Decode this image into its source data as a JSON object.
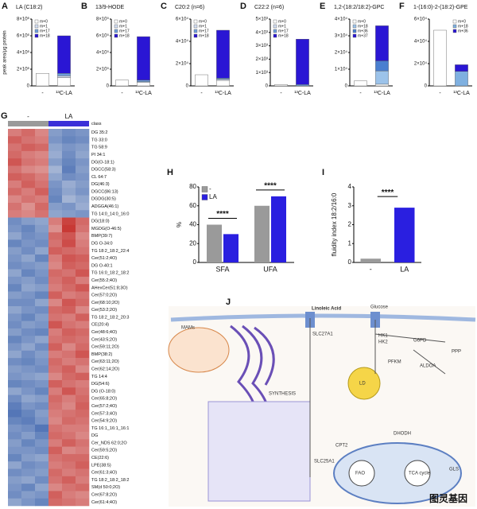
{
  "chart_data": [
    {
      "type": "bar",
      "panel_label": "A",
      "title": "LA (C18:2)",
      "ylabel": "peak area/μg protein",
      "stacked": true,
      "legend": "upper left",
      "categories": [
        "-",
        "¹³C-LA"
      ],
      "ylim": [
        0,
        8000000
      ],
      "yticks": [
        0,
        {
          "value": 2000000,
          "label": "2×10⁶"
        },
        {
          "value": 4000000,
          "label": "4×10⁶"
        },
        {
          "value": 6000000,
          "label": "6×10⁶"
        },
        {
          "value": 8000000,
          "label": "8×10⁶"
        }
      ],
      "series": [
        {
          "name": "m+0",
          "color": "#ffffff",
          "values": [
            1500000,
            1000000
          ]
        },
        {
          "name": "m+1",
          "color": "#d3def2",
          "values": [
            0,
            200000
          ]
        },
        {
          "name": "m+17",
          "color": "#6f9fdc",
          "values": [
            0,
            300000
          ]
        },
        {
          "name": "m+18",
          "color": "#2a16d4",
          "values": [
            0,
            4500000
          ]
        }
      ]
    },
    {
      "type": "bar",
      "panel_label": "B",
      "title": "13/9-HODE",
      "stacked": true,
      "legend": "upper left",
      "categories": [
        "-",
        "¹³C-LA"
      ],
      "ylim": [
        0,
        800000
      ],
      "yticks": [
        0,
        {
          "value": 200000,
          "label": "2×10⁵"
        },
        {
          "value": 400000,
          "label": "4×10⁵"
        },
        {
          "value": 600000,
          "label": "6×10⁵"
        },
        {
          "value": 800000,
          "label": "8×10⁵"
        }
      ],
      "series": [
        {
          "name": "m+0",
          "color": "#ffffff",
          "values": [
            70000,
            40000
          ]
        },
        {
          "name": "m+1",
          "color": "#d3def2",
          "values": [
            0,
            10000
          ]
        },
        {
          "name": "m+17",
          "color": "#6f9fdc",
          "values": [
            0,
            20000
          ]
        },
        {
          "name": "m+18",
          "color": "#2a16d4",
          "values": [
            0,
            520000
          ]
        }
      ]
    },
    {
      "type": "bar",
      "panel_label": "C",
      "title": "C20:2 (n=6)",
      "stacked": true,
      "legend": "upper left",
      "categories": [
        "-",
        "¹³C-LA"
      ],
      "ylim": [
        0,
        60000
      ],
      "yticks": [
        0,
        {
          "value": 20000,
          "label": "2×10⁴"
        },
        {
          "value": 40000,
          "label": "4×10⁴"
        },
        {
          "value": 60000,
          "label": "6×10⁴"
        }
      ],
      "series": [
        {
          "name": "m+0",
          "color": "#ffffff",
          "values": [
            10000,
            5000
          ]
        },
        {
          "name": "m+1",
          "color": "#d3def2",
          "values": [
            0,
            1000
          ]
        },
        {
          "name": "m+17",
          "color": "#6f9fdc",
          "values": [
            0,
            1000
          ]
        },
        {
          "name": "m+18",
          "color": "#2a16d4",
          "values": [
            0,
            43000
          ]
        }
      ]
    },
    {
      "type": "bar",
      "panel_label": "D",
      "title": "C22:2 (n=6)",
      "stacked": true,
      "legend": "upper left",
      "categories": [
        "-",
        "¹³C-LA"
      ],
      "ylim": [
        0,
        5000
      ],
      "yticks": [
        0,
        {
          "value": 1000,
          "label": "1×10³"
        },
        {
          "value": 2000,
          "label": "2×10³"
        },
        {
          "value": 3000,
          "label": "3×10³"
        },
        {
          "value": 4000,
          "label": "4×10³"
        },
        {
          "value": 5000,
          "label": "5×10³"
        }
      ],
      "series": [
        {
          "name": "m+0",
          "color": "#ffffff",
          "values": [
            100,
            0
          ]
        },
        {
          "name": "m+1",
          "color": "#d3def2",
          "values": [
            0,
            0
          ]
        },
        {
          "name": "m+17",
          "color": "#6f9fdc",
          "values": [
            0,
            100
          ]
        },
        {
          "name": "m+18",
          "color": "#2a16d4",
          "values": [
            0,
            3400
          ]
        }
      ]
    },
    {
      "type": "bar",
      "panel_label": "E",
      "title": "1,2-(18:2/18:2)-GPC",
      "stacked": true,
      "legend": "upper left",
      "categories": [
        "-",
        "¹³C-LA"
      ],
      "ylim": [
        0,
        40000
      ],
      "yticks": [
        0,
        {
          "value": 10000,
          "label": "1×10⁴"
        },
        {
          "value": 20000,
          "label": "2×10⁴"
        },
        {
          "value": 30000,
          "label": "3×10⁴"
        },
        {
          "value": 40000,
          "label": "4×10⁴"
        }
      ],
      "series": [
        {
          "name": "m+0",
          "color": "#ffffff",
          "values": [
            3000,
            1000
          ]
        },
        {
          "name": "m+18",
          "color": "#9cc3ea",
          "values": [
            0,
            8000
          ]
        },
        {
          "name": "m+36",
          "color": "#4a7fd0",
          "values": [
            0,
            6000
          ]
        },
        {
          "name": "m+37",
          "color": "#2a16d4",
          "values": [
            0,
            21000
          ]
        }
      ]
    },
    {
      "type": "bar",
      "panel_label": "F",
      "title": "1-(16:0)-2-(18:2)-GPE",
      "stacked": true,
      "legend": "upper right",
      "categories": [
        "-",
        "¹³C-LA"
      ],
      "ylim": [
        0,
        60000
      ],
      "yticks": [
        0,
        {
          "value": 20000,
          "label": "2×10⁴"
        },
        {
          "value": 40000,
          "label": "4×10⁴"
        },
        {
          "value": 60000,
          "label": "6×10⁴"
        }
      ],
      "series": [
        {
          "name": "m+0",
          "color": "#ffffff",
          "values": [
            50000,
            0
          ]
        },
        {
          "name": "m+18",
          "color": "#7fb0e0",
          "values": [
            0,
            13000
          ]
        },
        {
          "name": "m+36",
          "color": "#2a16d4",
          "values": [
            0,
            6000
          ]
        }
      ]
    },
    {
      "type": "heatmap",
      "panel_label": "G",
      "column_groups": [
        "-",
        "LA"
      ],
      "group_colors": [
        "#9a9a9a",
        "#3a2fd8"
      ],
      "class_label": "class",
      "colors": [
        "#2c57a8",
        "#f2f2f2",
        "#c62f2b"
      ],
      "zlim": [
        -2,
        2
      ],
      "rows": [
        "DG 35:2",
        "TG 33:0",
        "TG 58:9",
        "PI 34:1",
        "DG(O-18:1)",
        "DGCC(58:3)",
        "CL 64:7",
        "DG(46:3)",
        "DGCC(86:13)",
        "DGDG(30:5)",
        "ADGGA(46:1)",
        "TG 14:0_14:0_16:0",
        "DG(18:0)",
        "MGDG(O-46:5)",
        "BMP(39:7)",
        "DG O-34:0",
        "TG 18:2_18:2_22:4",
        "Cer(51:2;4O)",
        "DG O-40:1",
        "TG 16:0_18:2_18:2",
        "Cer(55:2;4O)",
        "AHexCer(51:8;3O)",
        "Cer(57:0;2O)",
        "Cer(68:10;2O)",
        "Cer(53:2;2O)",
        "TG 18:2_18:2_20:3",
        "CE(20:4)",
        "Cer(48:6;4O)",
        "Cer(43:5;2O)",
        "Cer(59:11;2O)",
        "BMP(38:2)",
        "Cer(63:11;2O)",
        "Cer(62:14;2O)",
        "TG 14:4",
        "DG(54:6)",
        "DG (O-18:0)",
        "Cer(65:8;2O)",
        "Cer(57:2;4O)",
        "Cer(57:3;4O)",
        "Cer(54:9;2O)",
        "TG 16:1_16:1_16:1",
        "DG",
        "Cer_NDS 62:0;2O",
        "Cer(59:5;2O)",
        "CE(22:6)",
        "LPE(38:5)",
        "Cer(61:3;4O)",
        "TG 18:2_18:2_18:2",
        "SM(d 50:0;2O)",
        "Cer(67:8;2O)",
        "Cer(61:4;4O)"
      ],
      "values": [
        [
          1.2,
          1.4,
          1.1,
          -1.1,
          -1.3,
          -1.2
        ],
        [
          1.5,
          1.3,
          1.2,
          -1.2,
          -1.4,
          -1.3
        ],
        [
          1.3,
          1.5,
          1.4,
          -1.0,
          -1.2,
          -1.1
        ],
        [
          1.4,
          1.2,
          1.1,
          -0.9,
          -1.3,
          -1.0
        ],
        [
          1.6,
          1.3,
          1.2,
          -1.1,
          -1.4,
          -1.2
        ],
        [
          1.3,
          1.1,
          1.0,
          -0.8,
          -1.5,
          -1.1
        ],
        [
          1.5,
          1.4,
          1.2,
          -1.0,
          -1.3,
          -1.2
        ],
        [
          1.2,
          1.5,
          1.3,
          -1.2,
          -0.9,
          -1.1
        ],
        [
          1.4,
          1.2,
          1.5,
          -1.3,
          -1.0,
          -1.2
        ],
        [
          1.1,
          1.3,
          1.2,
          -1.4,
          -0.8,
          -1.0
        ],
        [
          1.3,
          1.0,
          1.4,
          -1.1,
          -1.2,
          -0.9
        ],
        [
          1.2,
          1.1,
          1.3,
          -1.0,
          -1.1,
          -1.2
        ],
        [
          -1.3,
          -1.1,
          -1.0,
          1.2,
          1.8,
          1.4
        ],
        [
          -1.2,
          -1.4,
          -1.1,
          1.0,
          1.9,
          1.3
        ],
        [
          -1.0,
          -1.3,
          -1.2,
          1.4,
          1.6,
          1.1
        ],
        [
          -1.4,
          -1.2,
          -1.3,
          1.3,
          1.7,
          1.2
        ],
        [
          -1.1,
          -1.3,
          -1.0,
          1.5,
          1.4,
          1.3
        ],
        [
          -1.2,
          -1.0,
          -1.4,
          1.2,
          1.6,
          1.5
        ],
        [
          -1.3,
          -1.2,
          -1.1,
          1.1,
          1.5,
          1.4
        ],
        [
          -1.0,
          -1.4,
          -1.2,
          1.4,
          1.3,
          1.6
        ],
        [
          -1.2,
          -1.1,
          -1.3,
          1.3,
          1.5,
          1.2
        ],
        [
          -1.4,
          -1.0,
          -1.1,
          1.2,
          1.4,
          1.6
        ],
        [
          -1.1,
          -1.2,
          -1.4,
          1.5,
          1.2,
          1.3
        ],
        [
          -1.3,
          -1.3,
          -1.0,
          1.1,
          1.6,
          1.4
        ],
        [
          -1.0,
          -1.2,
          -1.3,
          1.4,
          1.5,
          1.1
        ],
        [
          -1.2,
          -1.4,
          -1.1,
          1.3,
          1.2,
          1.5
        ],
        [
          -1.3,
          -1.1,
          -1.2,
          1.6,
          1.3,
          1.2
        ],
        [
          -1.1,
          -1.3,
          -1.4,
          1.2,
          1.5,
          1.4
        ],
        [
          -1.4,
          -1.2,
          -1.0,
          1.3,
          1.4,
          1.3
        ],
        [
          -1.2,
          -1.0,
          -1.3,
          1.5,
          1.1,
          1.4
        ],
        [
          -1.0,
          -1.3,
          -1.1,
          1.2,
          1.3,
          1.6
        ],
        [
          -1.3,
          -1.4,
          -1.2,
          1.4,
          1.2,
          1.3
        ],
        [
          -1.1,
          -1.2,
          -1.3,
          1.3,
          1.5,
          1.1
        ],
        [
          -1.2,
          -1.1,
          -1.0,
          1.1,
          1.4,
          1.5
        ],
        [
          -1.4,
          -1.3,
          -1.2,
          1.5,
          1.3,
          1.2
        ],
        [
          -1.0,
          -1.2,
          -1.4,
          1.2,
          1.6,
          1.3
        ],
        [
          -1.3,
          -1.0,
          -1.1,
          1.4,
          1.2,
          1.4
        ],
        [
          -1.5,
          -1.2,
          -1.3,
          1.3,
          1.1,
          1.5
        ],
        [
          -1.6,
          -1.4,
          -1.1,
          1.2,
          1.3,
          1.4
        ],
        [
          -1.4,
          -1.5,
          -1.2,
          1.1,
          1.4,
          1.3
        ],
        [
          -1.2,
          -1.3,
          -1.6,
          1.3,
          1.2,
          1.2
        ],
        [
          -1.3,
          -1.1,
          -1.4,
          1.4,
          1.3,
          1.1
        ],
        [
          -1.1,
          -1.4,
          -1.2,
          1.2,
          1.5,
          1.3
        ],
        [
          -1.2,
          -1.2,
          -1.3,
          1.5,
          1.1,
          1.2
        ],
        [
          -1.4,
          -1.1,
          -1.0,
          1.3,
          1.4,
          1.4
        ],
        [
          -1.0,
          -1.3,
          -1.2,
          1.2,
          1.3,
          1.5
        ],
        [
          -1.3,
          -1.2,
          -1.1,
          1.4,
          1.2,
          1.3
        ],
        [
          -1.1,
          -1.0,
          -1.3,
          1.3,
          1.5,
          1.2
        ],
        [
          -1.2,
          -1.4,
          -1.0,
          1.1,
          1.3,
          1.4
        ],
        [
          -1.3,
          -1.1,
          -1.2,
          1.5,
          1.2,
          1.1
        ],
        [
          -1.0,
          -1.2,
          -1.4,
          1.4,
          1.3,
          1.2
        ]
      ]
    },
    {
      "type": "bar",
      "panel_label": "H",
      "ylabel": "%",
      "legend": "upper left",
      "categories": [
        "SFA",
        "UFA"
      ],
      "ylim": [
        0,
        80
      ],
      "yticks": [
        0,
        20,
        40,
        60,
        80
      ],
      "series": [
        {
          "name": "-",
          "color": "#9a9a9a",
          "values": [
            40,
            60
          ]
        },
        {
          "name": "LA",
          "color": "#2a1fe0",
          "values": [
            30,
            70
          ]
        }
      ],
      "annotations": [
        "****",
        "****"
      ]
    },
    {
      "type": "bar",
      "panel_label": "I",
      "ylabel": "fluidity index 18:2/16:0",
      "categories": [
        "-",
        "LA"
      ],
      "ylim": [
        0,
        4
      ],
      "yticks": [
        0,
        1,
        2,
        3,
        4
      ],
      "values": [
        0.2,
        2.9
      ],
      "colors": [
        "#9a9a9a",
        "#2a1fe0"
      ],
      "annotations": [
        "****"
      ]
    }
  ],
  "diagram": {
    "panel_label": "J",
    "labels": [
      "Linoleic Acid",
      "Glucose",
      "SLC27A1",
      "MAMs",
      "LD",
      "FAO",
      "TCA cycle",
      "PPP",
      "SYNTHESIS",
      "HK1",
      "HK2",
      "G6PD",
      "PFKM",
      "ALDOA",
      "GLS",
      "DHODH",
      "CPT2",
      "SLC25A1"
    ]
  },
  "watermark": "图灵基因"
}
